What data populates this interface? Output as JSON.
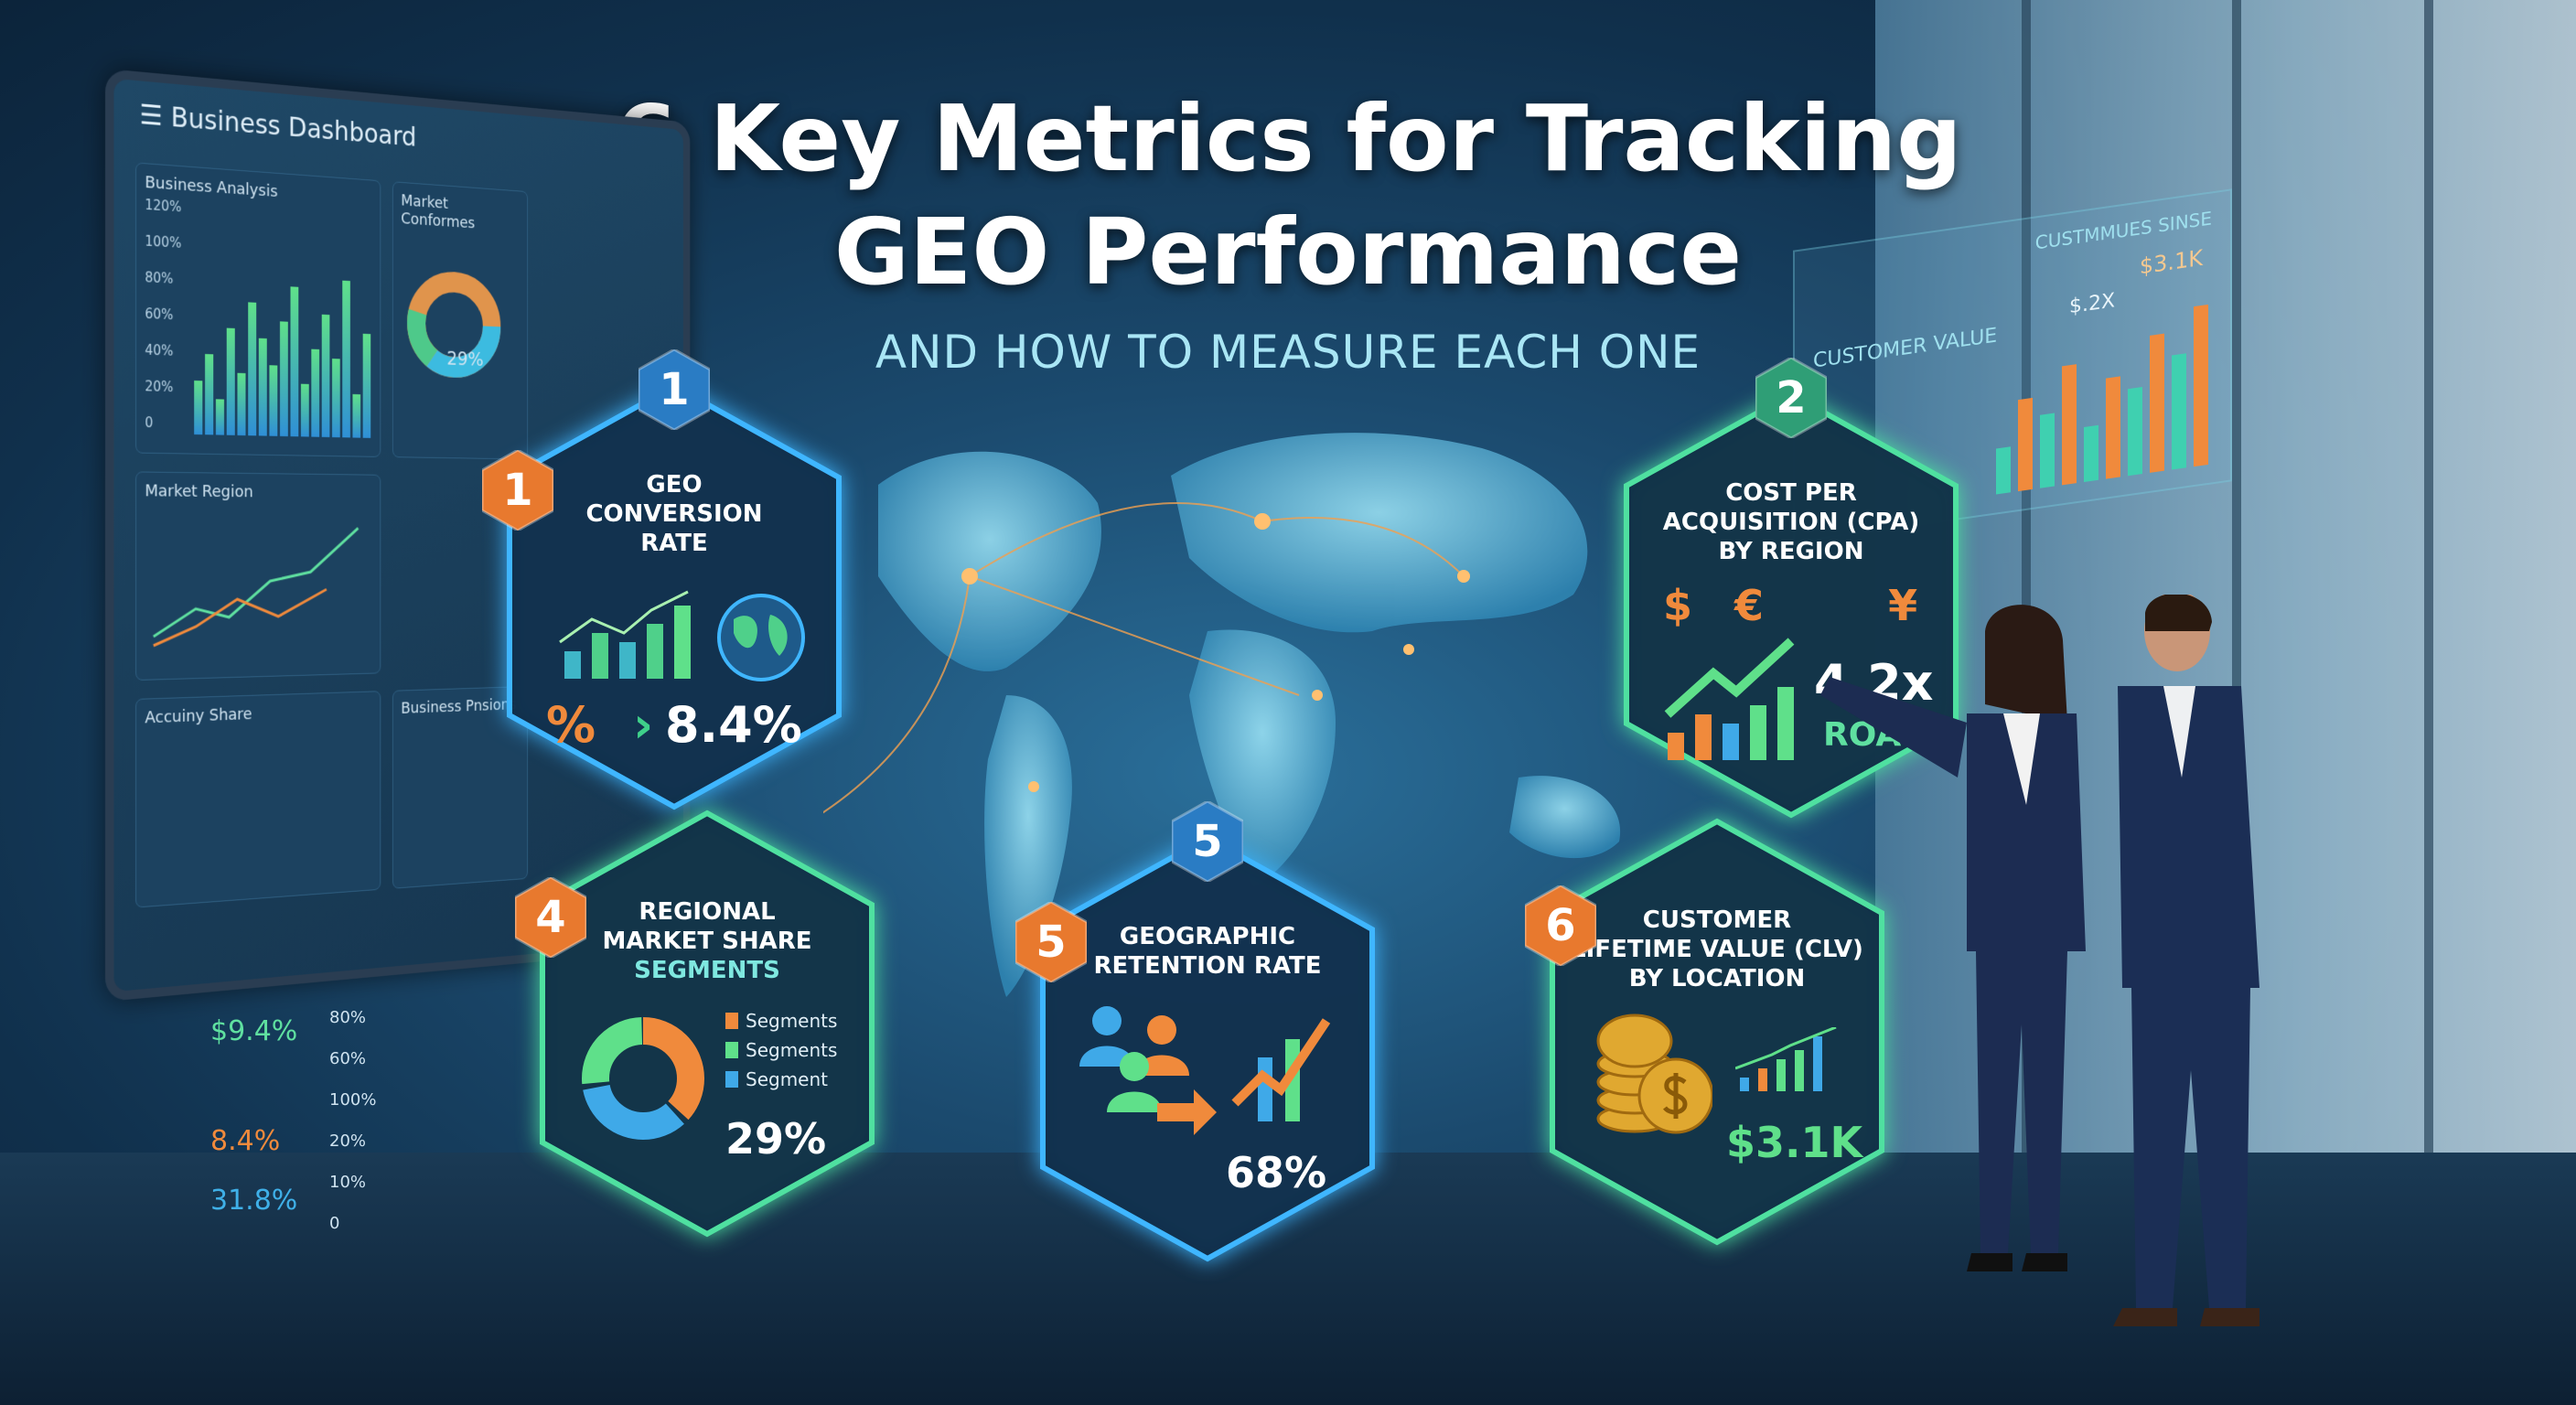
{
  "header": {
    "title_line1": "6 Key Metrics for Tracking",
    "title_line2": "GEO Performance",
    "subtitle": "AND HOW TO MEASURE EACH ONE"
  },
  "dashboard": {
    "title": "Business Dashboard",
    "cards": [
      "Business Analysis",
      "Market Conformes",
      "Market Region",
      "Accuiny Share",
      "Business Pnsions"
    ],
    "donut_label": "29%",
    "y_ticks": [
      "120%",
      "100%",
      "80%",
      "60%",
      "40%",
      "20%",
      "0"
    ]
  },
  "floor_panel": {
    "values": [
      "$9.4%",
      "8.4%",
      "31.8%"
    ],
    "ticks": [
      "80%",
      "60%",
      "100%",
      "20%",
      "10%",
      "0"
    ],
    "colors": [
      "#5fe0a0",
      "#f08a3c",
      "#3fb0e8"
    ]
  },
  "right_panel": {
    "title_left": "CUSTOMER VALUE",
    "title_right": "CUSTMMUES SINSE",
    "label_a": "$.2X",
    "label_b": "$3.1K"
  },
  "metrics": [
    {
      "badge": "1",
      "side_badge": "1",
      "title": [
        "GEO",
        "CONVERSION",
        "RATE"
      ],
      "value": "8.4%",
      "prefix": "%",
      "icons": [
        "bar-chart",
        "globe"
      ],
      "color": "#3fb6ff"
    },
    {
      "badge": "2",
      "title": [
        "COST PER",
        "ACQUISITION (CPA)",
        "BY REGION"
      ],
      "currencies": [
        "$",
        "€",
        "¥"
      ],
      "value": "4.2x",
      "value_label": "ROAS",
      "color": "#4fe0a0"
    },
    {
      "side_badge": "4",
      "title": [
        "REGIONAL",
        "MARKET SHARE"
      ],
      "subtitle": "SEGMENTS",
      "legend": [
        "Segments",
        "Segments",
        "Segment"
      ],
      "value": "29%",
      "color": "#4fe0a0"
    },
    {
      "badge": "5",
      "side_badge": "5",
      "title": [
        "GEOGRAPHIC",
        "RETENTION RATE"
      ],
      "value": "68%",
      "color": "#3fb6ff"
    },
    {
      "side_badge": "6",
      "title": [
        "CUSTOMER",
        "LIFETIME VALUE (CLV)",
        "BY LOCATION"
      ],
      "value": "$3.1K",
      "color": "#4fe0a0"
    }
  ],
  "colors": {
    "orange": "#f08a3c",
    "green": "#5fe08a",
    "blue": "#3fa9e8",
    "value_green": "#5fe08a",
    "roas": "#5fe0a0",
    "segments": "#7fe8e0"
  }
}
